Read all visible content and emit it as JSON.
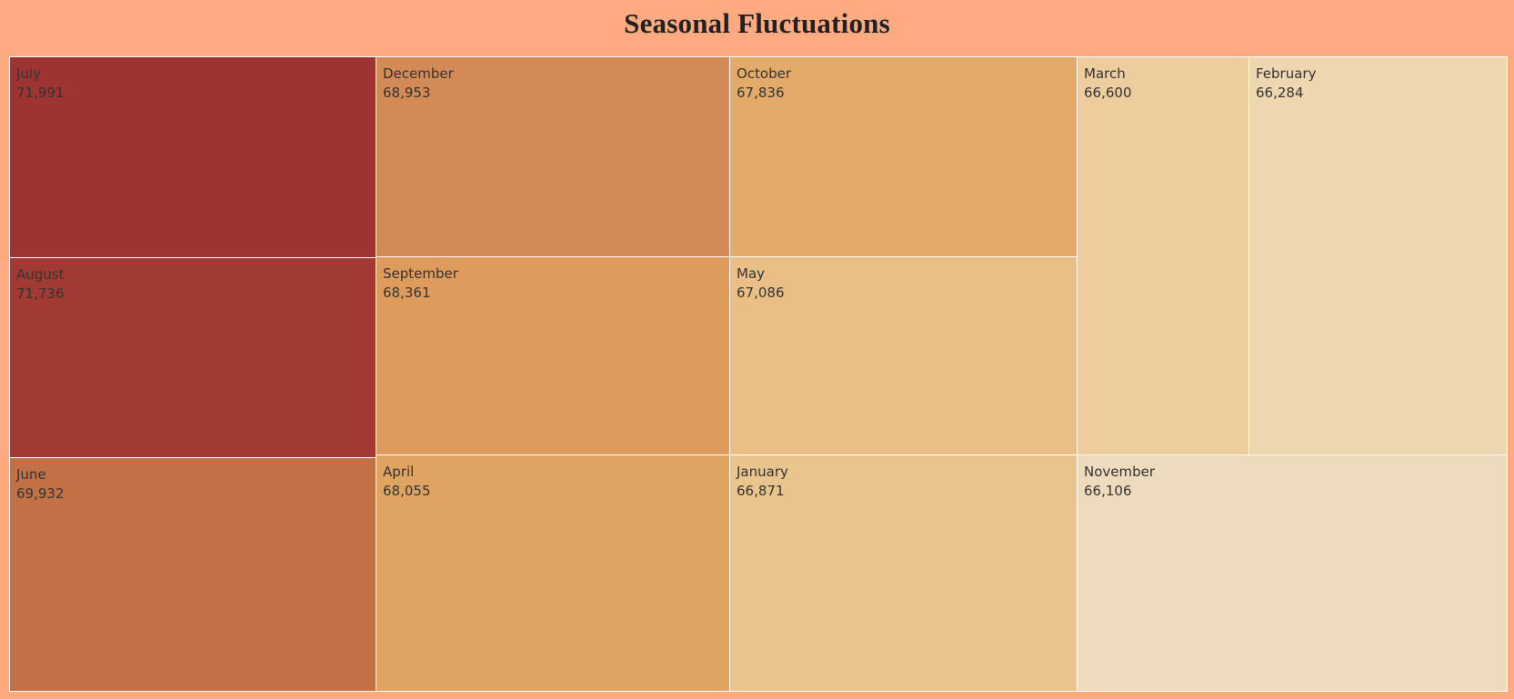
{
  "chart_data": {
    "type": "treemap",
    "title": "Seasonal Fluctuations",
    "items": [
      {
        "label": "July",
        "value": 71991,
        "value_text": "71,991",
        "color": "#9E3432"
      },
      {
        "label": "August",
        "value": 71736,
        "value_text": "71,736",
        "color": "#A13A33"
      },
      {
        "label": "June",
        "value": 69932,
        "value_text": "69,932",
        "color": "#C27046"
      },
      {
        "label": "December",
        "value": 68953,
        "value_text": "68,953",
        "color": "#D38A56"
      },
      {
        "label": "September",
        "value": 68361,
        "value_text": "68,361",
        "color": "#DE9B5B"
      },
      {
        "label": "April",
        "value": 68055,
        "value_text": "68,055",
        "color": "#E0A462"
      },
      {
        "label": "October",
        "value": 67836,
        "value_text": "67,836",
        "color": "#E4AA69"
      },
      {
        "label": "May",
        "value": 67086,
        "value_text": "67,086",
        "color": "#E9BF86"
      },
      {
        "label": "January",
        "value": 66871,
        "value_text": "66,871",
        "color": "#EAC48D"
      },
      {
        "label": "March",
        "value": 66600,
        "value_text": "66,600",
        "color": "#EDCC9E"
      },
      {
        "label": "February",
        "value": 66284,
        "value_text": "66,284",
        "color": "#EED6B1"
      },
      {
        "label": "November",
        "value": 66106,
        "value_text": "66,106",
        "color": "#EEDBBD"
      }
    ]
  }
}
